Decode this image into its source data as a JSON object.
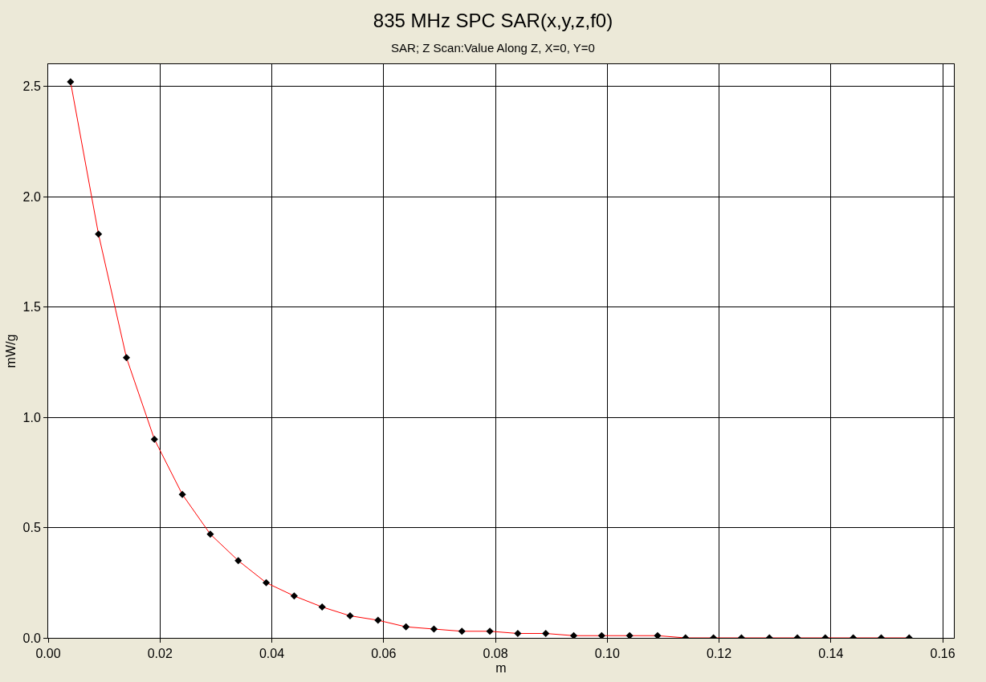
{
  "chart_data": {
    "type": "line",
    "title": "835 MHz SPC SAR(x,y,z,f0)",
    "subtitle": "SAR; Z Scan:Value Along Z, X=0, Y=0",
    "xlabel": "m",
    "ylabel": "mW/g",
    "x": [
      0.004,
      0.009,
      0.014,
      0.019,
      0.024,
      0.029,
      0.034,
      0.039,
      0.044,
      0.049,
      0.054,
      0.059,
      0.064,
      0.069,
      0.074,
      0.079,
      0.084,
      0.089,
      0.094,
      0.099,
      0.104,
      0.109,
      0.114,
      0.119,
      0.124,
      0.129,
      0.134,
      0.139,
      0.144,
      0.149,
      0.154
    ],
    "series": [
      {
        "color": "#ff0000",
        "values": [
          2.52,
          1.83,
          1.27,
          0.9,
          0.65,
          0.47,
          0.35,
          0.25,
          0.19,
          0.14,
          0.1,
          0.08,
          0.05,
          0.04,
          0.03,
          0.03,
          0.02,
          0.02,
          0.01,
          0.01,
          0.01,
          0.01,
          0.0,
          0.0,
          0.0,
          0.0,
          0.0,
          0.0,
          0.0,
          0.0,
          0.0
        ]
      }
    ],
    "xlim": [
      0,
      0.162
    ],
    "ylim": [
      0,
      2.6
    ],
    "xticks": [
      {
        "value": 0,
        "label": "0.00"
      },
      0.02,
      0.04,
      0.06,
      0.08,
      {
        "value": 0.1,
        "label": "0.10"
      },
      0.12,
      0.14,
      0.16
    ],
    "yticks": [
      {
        "value": 0,
        "label": "0.0"
      },
      0.5,
      {
        "value": 1,
        "label": "1.0"
      },
      1.5,
      {
        "value": 2,
        "label": "2.0"
      },
      2.5
    ],
    "grid": true,
    "marker": "diamond",
    "line_style": "solid"
  }
}
